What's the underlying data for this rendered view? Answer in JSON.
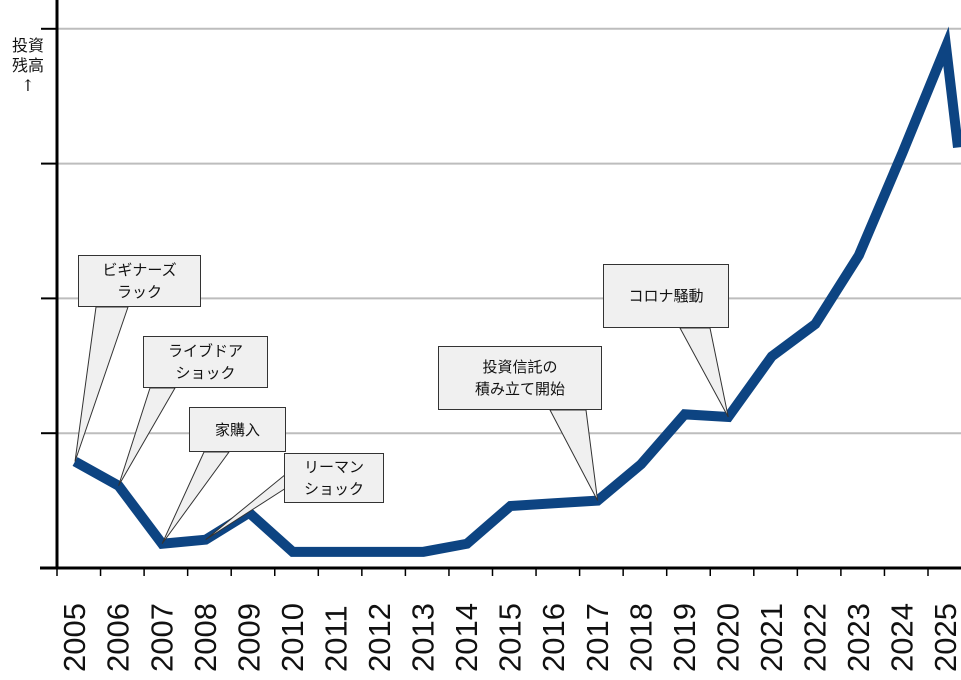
{
  "chart_data": {
    "type": "line",
    "ylabel": "投資\n残高\n↑",
    "x": [
      "2005",
      "2006",
      "2007",
      "2008",
      "2009",
      "2010",
      "2011",
      "2012",
      "2013",
      "2014",
      "2015",
      "2016",
      "2017",
      "2018",
      "2019",
      "2020",
      "2021",
      "2022",
      "2023",
      "2024",
      "2025"
    ],
    "series": [
      {
        "values": [
          7.9,
          6.1,
          1.8,
          2.1,
          4.1,
          1.2,
          1.2,
          1.2,
          1.2,
          1.8,
          4.6,
          4.8,
          5.0,
          7.7,
          11.4,
          11.2,
          15.7,
          18.1,
          23.2,
          30.8,
          38.7
        ]
      }
    ],
    "end_tail_value": 31.2,
    "ylim": [
      0,
      40
    ],
    "yticks": [
      0,
      10,
      20,
      30,
      40
    ],
    "grid": true,
    "line_color": "#0d4482",
    "annotations": [
      {
        "text": "ビギナーズ\nラック",
        "x": "2005"
      },
      {
        "text": "ライブドア\nショック",
        "x": "2006"
      },
      {
        "text": "家購入",
        "x": "2007"
      },
      {
        "text": "リーマン\nショック",
        "x": "2008"
      },
      {
        "text": "投資信託の\n積み立て開始",
        "x": "2017"
      },
      {
        "text": "コロナ騒動",
        "x": "2020"
      }
    ]
  }
}
